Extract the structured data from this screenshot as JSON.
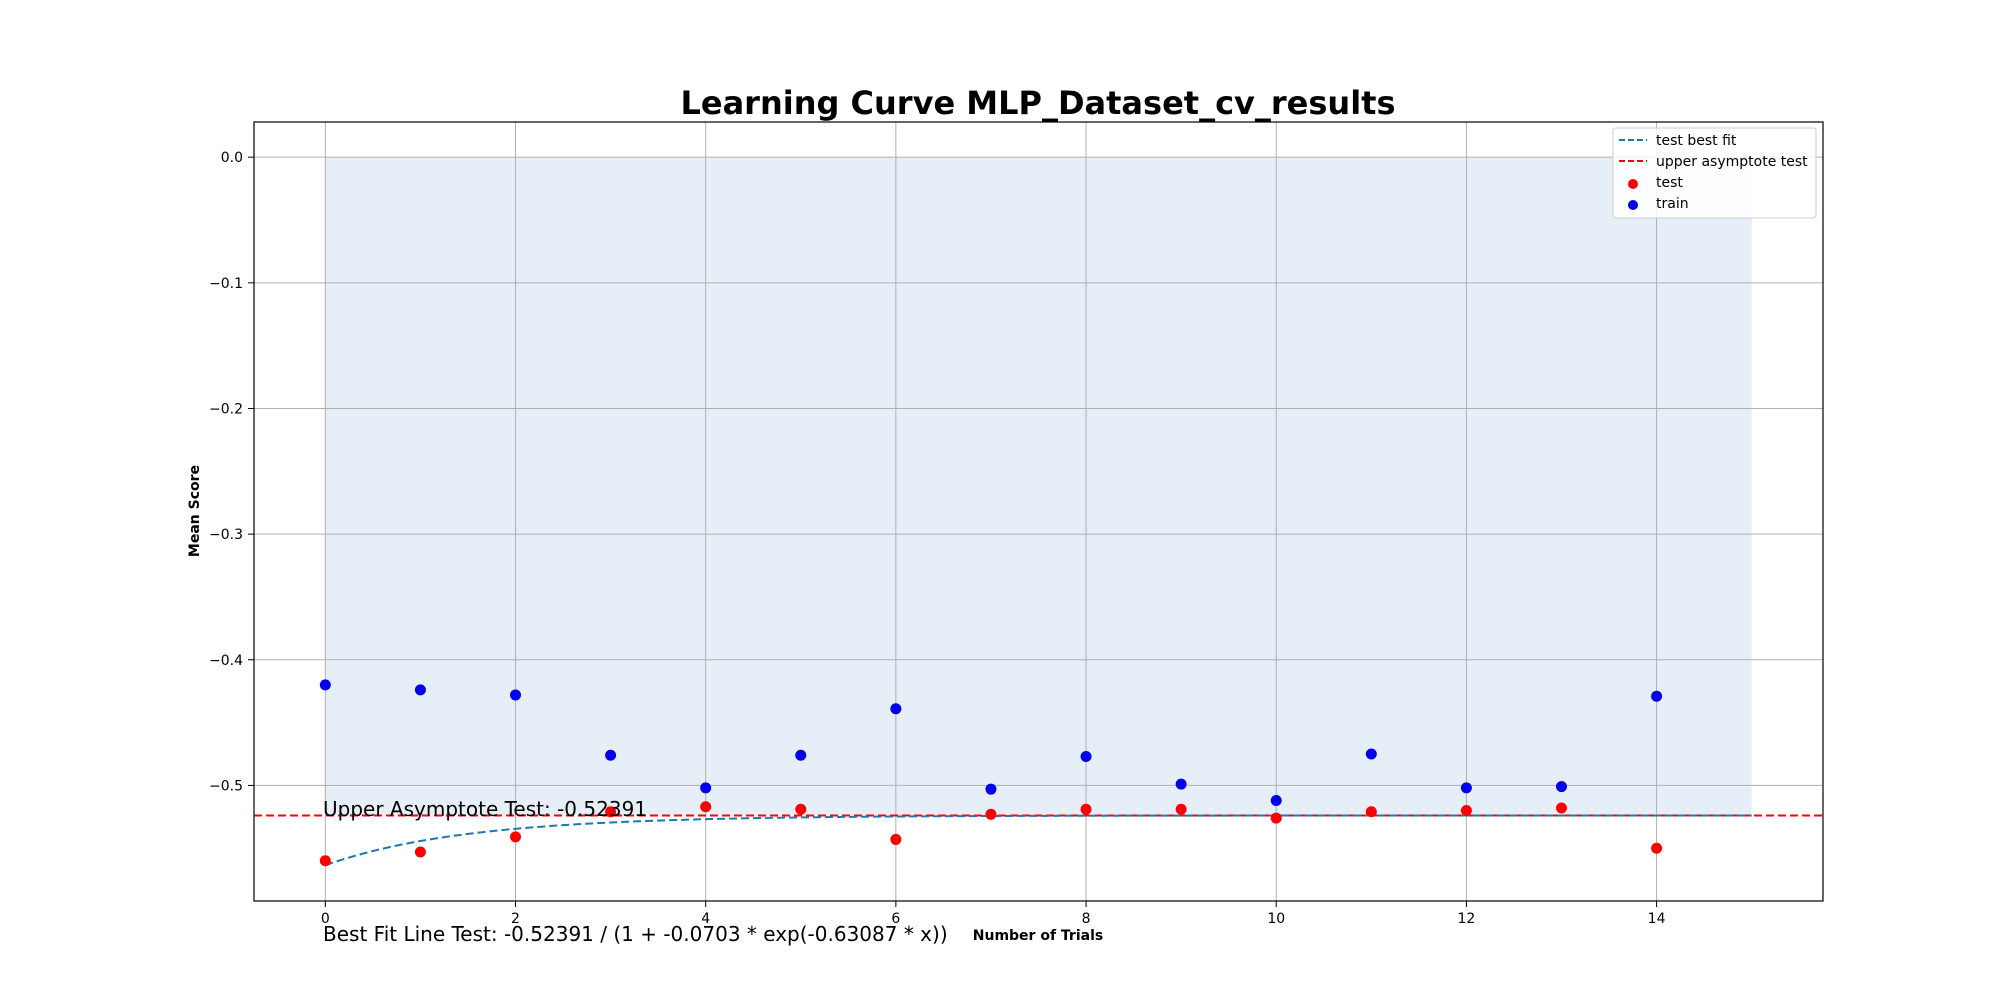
{
  "chart_data": {
    "type": "scatter",
    "title": "Learning Curve MLP_Dataset_cv_results",
    "xlabel": "Number of Trials",
    "ylabel": "Mean Score",
    "xlim": [
      -0.75,
      15.75
    ],
    "ylim": [
      -0.592,
      0.028
    ],
    "xticks": [
      0,
      2,
      4,
      6,
      8,
      10,
      12,
      14
    ],
    "xtick_labels": [
      "0",
      "2",
      "4",
      "6",
      "8",
      "10",
      "12",
      "14"
    ],
    "yticks": [
      0.0,
      -0.1,
      -0.2,
      -0.3,
      -0.4,
      -0.5
    ],
    "ytick_labels": [
      "0.0",
      "−0.1",
      "−0.2",
      "−0.3",
      "−0.4",
      "−0.5"
    ],
    "grid": true,
    "legend_position": "top-right",
    "shaded_region": {
      "x": [
        0,
        15
      ],
      "y_top": 0.0,
      "y_bottom": -0.52391,
      "color": "#e6eff8"
    },
    "series": [
      {
        "name": "test",
        "kind": "scatter",
        "color": "#ff0000",
        "x": [
          0,
          1,
          2,
          3,
          4,
          5,
          6,
          7,
          8,
          9,
          10,
          11,
          12,
          13,
          14
        ],
        "y": [
          -0.56,
          -0.553,
          -0.541,
          -0.521,
          -0.517,
          -0.519,
          -0.543,
          -0.523,
          -0.519,
          -0.519,
          -0.526,
          -0.521,
          -0.52,
          -0.518,
          -0.55
        ]
      },
      {
        "name": "train",
        "kind": "scatter",
        "color": "#0000ee",
        "x": [
          0,
          1,
          2,
          3,
          4,
          5,
          6,
          7,
          8,
          9,
          10,
          11,
          12,
          13,
          14
        ],
        "y": [
          -0.42,
          -0.424,
          -0.428,
          -0.476,
          -0.502,
          -0.476,
          -0.439,
          -0.503,
          -0.477,
          -0.499,
          -0.512,
          -0.475,
          -0.502,
          -0.501,
          -0.429
        ]
      },
      {
        "name": "test best fit",
        "kind": "line",
        "style": "dashed",
        "color": "#1f77b4",
        "formula": {
          "L": -0.52391,
          "a": -0.0703,
          "k": -0.63087
        },
        "x_range": [
          0,
          15
        ]
      },
      {
        "name": "upper asymptote test",
        "kind": "hline",
        "style": "dashed",
        "color": "#ff0000",
        "y": -0.52391
      }
    ],
    "legend_entries": [
      {
        "label": "test best fit",
        "kind": "line",
        "color": "#1f77b4"
      },
      {
        "label": "upper asymptote test",
        "kind": "line",
        "color": "#ff0000"
      },
      {
        "label": "test",
        "kind": "dot",
        "color": "#ff0000"
      },
      {
        "label": "train",
        "kind": "dot",
        "color": "#0000ee"
      }
    ],
    "annotations": [
      {
        "text": "Upper Asymptote Test: -0.52391"
      },
      {
        "text": "Best Fit Line Test: -0.52391 / (1 + -0.0703 * exp(-0.63087 * x))"
      }
    ]
  }
}
